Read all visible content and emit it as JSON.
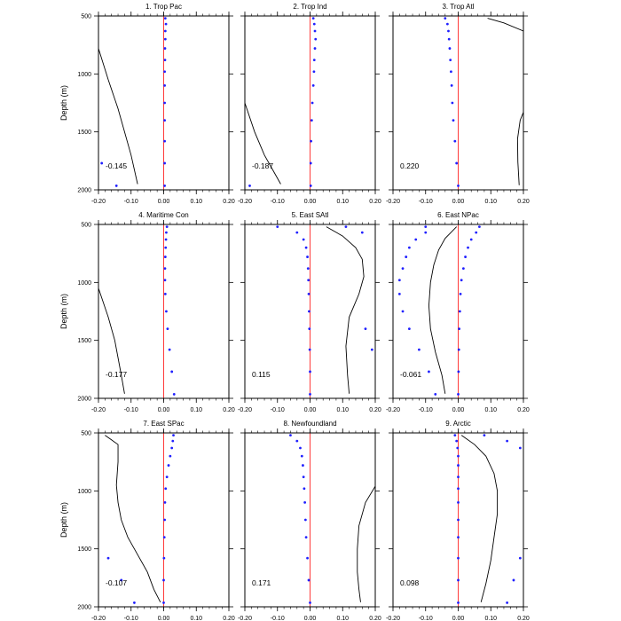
{
  "figure": {
    "ylabel": "Depth (m)",
    "colors": {
      "zero_line": "#ff3b3b",
      "dots": "#2020ff",
      "curve": "#000000",
      "frame": "#000000"
    }
  },
  "chart_data": [
    {
      "type": "scatter",
      "title": "1. Trop Pac",
      "xlabel": "",
      "ylabel": "Depth (m)",
      "xlim": [
        -0.2,
        0.2
      ],
      "ylim": [
        2000,
        500
      ],
      "xticks": [
        "-0.20",
        "-0.10",
        "0.00",
        "0.10",
        "0.20"
      ],
      "yticks": [
        "500",
        "1000",
        "1500",
        "2000"
      ],
      "annotation": "-0.145",
      "dots": [
        [
          0.005,
          520
        ],
        [
          0.007,
          570
        ],
        [
          0.005,
          630
        ],
        [
          0.005,
          700
        ],
        [
          0.004,
          780
        ],
        [
          0.004,
          880
        ],
        [
          0.003,
          980
        ],
        [
          0.003,
          1100
        ],
        [
          0.003,
          1250
        ],
        [
          0.003,
          1400
        ],
        [
          0.003,
          1580
        ],
        [
          0.003,
          1770
        ],
        [
          -0.19,
          1770
        ],
        [
          -0.145,
          1965
        ],
        [
          0.003,
          1965
        ]
      ],
      "curve": [
        [
          -0.2,
          780
        ],
        [
          -0.17,
          1050
        ],
        [
          -0.14,
          1300
        ],
        [
          -0.12,
          1500
        ],
        [
          -0.1,
          1700
        ],
        [
          -0.08,
          1950
        ]
      ]
    },
    {
      "type": "scatter",
      "title": "2. Trop Ind",
      "xlabel": "",
      "ylabel": "",
      "xlim": [
        -0.2,
        0.2
      ],
      "ylim": [
        2000,
        500
      ],
      "xticks": [
        "-0.20",
        "-0.10",
        "0.00",
        "0.10",
        "0.20"
      ],
      "yticks": [
        "500",
        "1000",
        "1500",
        "2000"
      ],
      "annotation": "-0.187",
      "dots": [
        [
          0.01,
          520
        ],
        [
          0.013,
          570
        ],
        [
          0.015,
          630
        ],
        [
          0.017,
          700
        ],
        [
          0.015,
          780
        ],
        [
          0.013,
          880
        ],
        [
          0.012,
          980
        ],
        [
          0.01,
          1100
        ],
        [
          0.007,
          1250
        ],
        [
          0.005,
          1400
        ],
        [
          0.003,
          1580
        ],
        [
          0.002,
          1770
        ],
        [
          0.002,
          1965
        ],
        [
          -0.185,
          1965
        ]
      ],
      "curve": [
        [
          -0.2,
          1250
        ],
        [
          -0.17,
          1500
        ],
        [
          -0.14,
          1700
        ],
        [
          -0.11,
          1850
        ],
        [
          -0.09,
          1950
        ]
      ]
    },
    {
      "type": "scatter",
      "title": "3. Trop Atl",
      "xlabel": "",
      "ylabel": "",
      "xlim": [
        -0.2,
        0.2
      ],
      "ylim": [
        2000,
        500
      ],
      "xticks": [
        "-0.20",
        "-0.10",
        "0.00",
        "0.10",
        "0.20"
      ],
      "yticks": [
        "500",
        "1000",
        "1500",
        "2000"
      ],
      "annotation": "0.220",
      "dots": [
        [
          -0.04,
          520
        ],
        [
          -0.033,
          570
        ],
        [
          -0.03,
          630
        ],
        [
          -0.028,
          700
        ],
        [
          -0.026,
          780
        ],
        [
          -0.024,
          880
        ],
        [
          -0.022,
          980
        ],
        [
          -0.02,
          1100
        ],
        [
          -0.018,
          1250
        ],
        [
          -0.015,
          1400
        ],
        [
          -0.01,
          1580
        ],
        [
          -0.005,
          1770
        ],
        [
          0.0,
          1965
        ]
      ],
      "curve_segments": [
        [
          [
            0.09,
            520
          ],
          [
            0.14,
            560
          ],
          [
            0.2,
            630
          ]
        ],
        [
          [
            0.2,
            1330
          ],
          [
            0.19,
            1400
          ],
          [
            0.182,
            1560
          ],
          [
            0.183,
            1760
          ],
          [
            0.187,
            1960
          ]
        ]
      ]
    },
    {
      "type": "scatter",
      "title": "4. Maritime Con",
      "xlabel": "",
      "ylabel": "Depth (m)",
      "xlim": [
        -0.2,
        0.2
      ],
      "ylim": [
        2000,
        500
      ],
      "xticks": [
        "-0.20",
        "-0.10",
        "0.00",
        "0.10",
        "0.20"
      ],
      "yticks": [
        "500",
        "1000",
        "1500",
        "2000"
      ],
      "annotation": "-0.177",
      "dots": [
        [
          0.01,
          520
        ],
        [
          0.008,
          570
        ],
        [
          0.007,
          630
        ],
        [
          0.006,
          700
        ],
        [
          0.005,
          780
        ],
        [
          0.004,
          880
        ],
        [
          0.004,
          980
        ],
        [
          0.005,
          1100
        ],
        [
          0.008,
          1250
        ],
        [
          0.012,
          1400
        ],
        [
          0.018,
          1580
        ],
        [
          0.025,
          1770
        ],
        [
          0.032,
          1965
        ]
      ],
      "curve": [
        [
          -0.2,
          1050
        ],
        [
          -0.17,
          1300
        ],
        [
          -0.15,
          1500
        ],
        [
          -0.13,
          1800
        ],
        [
          -0.12,
          1960
        ]
      ]
    },
    {
      "type": "scatter",
      "title": "5. East SAtl",
      "xlabel": "",
      "ylabel": "",
      "xlim": [
        -0.2,
        0.2
      ],
      "ylim": [
        2000,
        500
      ],
      "xticks": [
        "-0.20",
        "-0.10",
        "0.00",
        "0.10",
        "0.20"
      ],
      "yticks": [
        "500",
        "1000",
        "1500",
        "2000"
      ],
      "annotation": "0.115",
      "dots": [
        [
          -0.1,
          520
        ],
        [
          -0.04,
          570
        ],
        [
          -0.02,
          630
        ],
        [
          -0.012,
          700
        ],
        [
          -0.008,
          780
        ],
        [
          -0.006,
          880
        ],
        [
          -0.005,
          980
        ],
        [
          -0.004,
          1100
        ],
        [
          -0.003,
          1250
        ],
        [
          -0.002,
          1400
        ],
        [
          -0.001,
          1580
        ],
        [
          0.0,
          1770
        ],
        [
          0.0,
          1965
        ],
        [
          0.11,
          520
        ],
        [
          0.16,
          570
        ],
        [
          0.17,
          1400
        ],
        [
          0.19,
          1580
        ]
      ],
      "curve": [
        [
          0.05,
          520
        ],
        [
          0.1,
          600
        ],
        [
          0.14,
          700
        ],
        [
          0.16,
          800
        ],
        [
          0.165,
          950
        ],
        [
          0.15,
          1100
        ],
        [
          0.12,
          1300
        ],
        [
          0.11,
          1550
        ],
        [
          0.115,
          1800
        ],
        [
          0.12,
          1960
        ]
      ]
    },
    {
      "type": "scatter",
      "title": "6. East NPac",
      "xlabel": "",
      "ylabel": "",
      "xlim": [
        -0.2,
        0.2
      ],
      "ylim": [
        2000,
        500
      ],
      "xticks": [
        "-0.20",
        "-0.10",
        "0.00",
        "0.10",
        "0.20"
      ],
      "yticks": [
        "500",
        "1000",
        "1500",
        "2000"
      ],
      "annotation": "-0.061",
      "dots": [
        [
          0.065,
          520
        ],
        [
          0.055,
          570
        ],
        [
          0.04,
          630
        ],
        [
          0.03,
          700
        ],
        [
          0.022,
          780
        ],
        [
          0.016,
          880
        ],
        [
          0.01,
          980
        ],
        [
          0.007,
          1100
        ],
        [
          0.005,
          1250
        ],
        [
          0.003,
          1400
        ],
        [
          0.002,
          1580
        ],
        [
          0.001,
          1770
        ],
        [
          0.0,
          1965
        ],
        [
          -0.1,
          520
        ],
        [
          -0.1,
          570
        ],
        [
          -0.13,
          630
        ],
        [
          -0.15,
          700
        ],
        [
          -0.16,
          780
        ],
        [
          -0.17,
          880
        ],
        [
          -0.18,
          980
        ],
        [
          -0.18,
          1100
        ],
        [
          -0.17,
          1250
        ],
        [
          -0.15,
          1400
        ],
        [
          -0.12,
          1580
        ],
        [
          -0.09,
          1770
        ],
        [
          -0.07,
          1965
        ]
      ],
      "curve": [
        [
          -0.005,
          520
        ],
        [
          -0.04,
          620
        ],
        [
          -0.06,
          720
        ],
        [
          -0.075,
          850
        ],
        [
          -0.085,
          1000
        ],
        [
          -0.09,
          1200
        ],
        [
          -0.085,
          1400
        ],
        [
          -0.07,
          1600
        ],
        [
          -0.05,
          1800
        ],
        [
          -0.04,
          1960
        ]
      ]
    },
    {
      "type": "scatter",
      "title": "7. East SPac",
      "xlabel": "",
      "ylabel": "Depth (m)",
      "xlim": [
        -0.2,
        0.2
      ],
      "ylim": [
        2000,
        500
      ],
      "xticks": [
        "-0.20",
        "-0.10",
        "0.00",
        "0.10",
        "0.20"
      ],
      "yticks": [
        "500",
        "1000",
        "1500",
        "2000"
      ],
      "annotation": "-0.107",
      "dots": [
        [
          0.03,
          520
        ],
        [
          0.028,
          570
        ],
        [
          0.025,
          630
        ],
        [
          0.02,
          700
        ],
        [
          0.015,
          780
        ],
        [
          0.01,
          880
        ],
        [
          0.006,
          980
        ],
        [
          0.004,
          1100
        ],
        [
          0.003,
          1250
        ],
        [
          0.002,
          1400
        ],
        [
          0.001,
          1580
        ],
        [
          0.0,
          1770
        ],
        [
          0.0,
          1965
        ],
        [
          -0.17,
          1580
        ],
        [
          -0.13,
          1770
        ],
        [
          -0.09,
          1965
        ]
      ],
      "curve": [
        [
          -0.18,
          520
        ],
        [
          -0.14,
          600
        ],
        [
          -0.14,
          750
        ],
        [
          -0.145,
          950
        ],
        [
          -0.14,
          1100
        ],
        [
          -0.13,
          1250
        ],
        [
          -0.11,
          1400
        ],
        [
          -0.08,
          1550
        ],
        [
          -0.05,
          1700
        ],
        [
          -0.03,
          1850
        ],
        [
          -0.01,
          1960
        ]
      ]
    },
    {
      "type": "scatter",
      "title": "8. Newfoundland",
      "xlabel": "",
      "ylabel": "",
      "xlim": [
        -0.2,
        0.2
      ],
      "ylim": [
        2000,
        500
      ],
      "xticks": [
        "-0.20",
        "-0.10",
        "0.00",
        "0.10",
        "0.20"
      ],
      "yticks": [
        "500",
        "1000",
        "1500",
        "2000"
      ],
      "annotation": "0.171",
      "dots": [
        [
          -0.06,
          520
        ],
        [
          -0.04,
          570
        ],
        [
          -0.03,
          630
        ],
        [
          -0.025,
          700
        ],
        [
          -0.022,
          780
        ],
        [
          -0.02,
          880
        ],
        [
          -0.018,
          980
        ],
        [
          -0.016,
          1100
        ],
        [
          -0.014,
          1250
        ],
        [
          -0.012,
          1400
        ],
        [
          -0.008,
          1580
        ],
        [
          -0.004,
          1770
        ],
        [
          0.0,
          1965
        ]
      ],
      "curve": [
        [
          0.2,
          960
        ],
        [
          0.17,
          1100
        ],
        [
          0.15,
          1300
        ],
        [
          0.145,
          1500
        ],
        [
          0.145,
          1700
        ],
        [
          0.15,
          1850
        ],
        [
          0.155,
          1960
        ]
      ]
    },
    {
      "type": "scatter",
      "title": "9. Arctic",
      "xlabel": "",
      "ylabel": "",
      "xlim": [
        -0.2,
        0.2
      ],
      "ylim": [
        2000,
        500
      ],
      "xticks": [
        "-0.20",
        "-0.10",
        "0.00",
        "0.10",
        "0.20"
      ],
      "yticks": [
        "500",
        "1000",
        "1500",
        "2000"
      ],
      "annotation": "0.098",
      "dots": [
        [
          -0.01,
          520
        ],
        [
          -0.005,
          570
        ],
        [
          -0.002,
          630
        ],
        [
          0.0,
          700
        ],
        [
          0.0,
          780
        ],
        [
          0.0,
          880
        ],
        [
          0.0,
          980
        ],
        [
          0.0,
          1100
        ],
        [
          0.0,
          1250
        ],
        [
          0.0,
          1400
        ],
        [
          0.0,
          1580
        ],
        [
          0.0,
          1770
        ],
        [
          0.0,
          1965
        ],
        [
          0.08,
          520
        ],
        [
          0.15,
          570
        ],
        [
          0.19,
          630
        ],
        [
          0.19,
          1580
        ],
        [
          0.17,
          1770
        ],
        [
          0.15,
          1965
        ]
      ],
      "curve": [
        [
          0.01,
          520
        ],
        [
          0.05,
          600
        ],
        [
          0.085,
          700
        ],
        [
          0.11,
          850
        ],
        [
          0.12,
          1000
        ],
        [
          0.12,
          1200
        ],
        [
          0.11,
          1400
        ],
        [
          0.1,
          1600
        ],
        [
          0.085,
          1800
        ],
        [
          0.07,
          1960
        ]
      ]
    }
  ]
}
